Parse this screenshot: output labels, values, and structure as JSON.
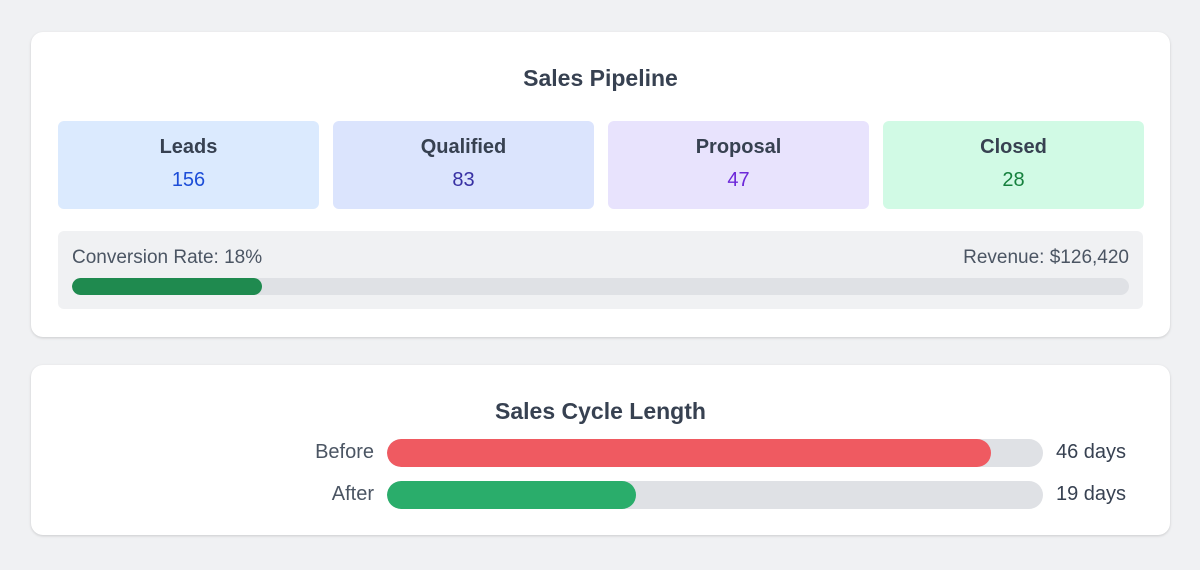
{
  "pipeline": {
    "title": "Sales Pipeline",
    "stages": [
      {
        "label": "Leads",
        "value": "156",
        "bg": "#dbeafe",
        "color": "#1d4ed8"
      },
      {
        "label": "Qualified",
        "value": "83",
        "bg": "#dbe4fd",
        "color": "#3730a3"
      },
      {
        "label": "Proposal",
        "value": "47",
        "bg": "#e8e3fd",
        "color": "#6d28d9"
      },
      {
        "label": "Closed",
        "value": "28",
        "bg": "#d1fae5",
        "color": "#15803d"
      }
    ],
    "conversion_label": "Conversion Rate: 18%",
    "conversion_rate": 0.18,
    "revenue_label": "Revenue: $126,420",
    "progress_color": "#1f8a4f"
  },
  "cycle": {
    "title": "Sales Cycle Length",
    "rows": [
      {
        "label": "Before",
        "value_text": "46 days",
        "fraction": 0.92,
        "color": "#ef5a61"
      },
      {
        "label": "After",
        "value_text": "19 days",
        "fraction": 0.38,
        "color": "#2aad6b"
      }
    ]
  }
}
